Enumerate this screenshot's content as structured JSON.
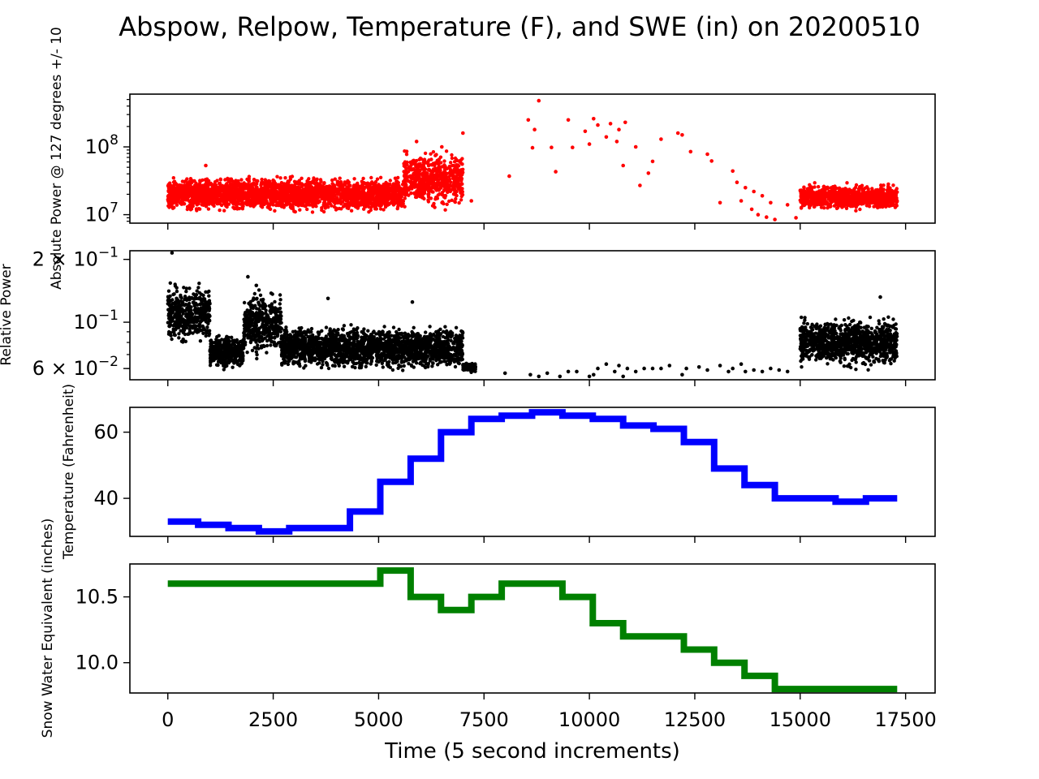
{
  "figure": {
    "title": "Abspow, Relpow, Temperature (F), and SWE (in) on 20200510",
    "xlabel": "Time (5 second increments)"
  },
  "chart_data": [
    {
      "type": "scatter",
      "ylabel": "Absolute Power @ 127 degrees +/- 10",
      "yscale": "log",
      "ylim": [
        7500000,
        600000000
      ],
      "yticks": [
        {
          "value": 100000000,
          "base": "10",
          "exp": "8"
        },
        {
          "value": 10000000,
          "base": "10",
          "exp": "7"
        }
      ],
      "color": "#ff0000",
      "xlim": [
        -900,
        18200
      ],
      "x_ticks": [
        0,
        2500,
        5000,
        7500,
        10000,
        12500,
        15000,
        17500
      ],
      "bands": [
        {
          "x": [
            0,
            5600
          ],
          "y": [
            10000000,
            40000000
          ]
        },
        {
          "x": [
            5600,
            7000
          ],
          "y": [
            11000000,
            100000000
          ]
        },
        {
          "x": [
            15000,
            17300
          ],
          "y": [
            11000000,
            30000000
          ]
        }
      ],
      "points": [
        [
          900,
          53000000
        ],
        [
          7000,
          160000000
        ],
        [
          5900,
          120000000
        ],
        [
          6500,
          100000000
        ],
        [
          7200,
          16000000
        ],
        [
          8100,
          37000000
        ],
        [
          8550,
          250000000
        ],
        [
          8650,
          97000000
        ],
        [
          8700,
          180000000
        ],
        [
          8800,
          480000000
        ],
        [
          9100,
          98000000
        ],
        [
          9200,
          43000000
        ],
        [
          9500,
          250000000
        ],
        [
          9600,
          98000000
        ],
        [
          9900,
          170000000
        ],
        [
          10000,
          110000000
        ],
        [
          10100,
          260000000
        ],
        [
          10200,
          210000000
        ],
        [
          10400,
          140000000
        ],
        [
          10500,
          220000000
        ],
        [
          10650,
          120000000
        ],
        [
          10700,
          180000000
        ],
        [
          10800,
          53000000
        ],
        [
          10850,
          230000000
        ],
        [
          11100,
          100000000
        ],
        [
          11200,
          27000000
        ],
        [
          11400,
          41000000
        ],
        [
          11500,
          61000000
        ],
        [
          11700,
          130000000
        ],
        [
          12100,
          160000000
        ],
        [
          12200,
          150000000
        ],
        [
          12400,
          85000000
        ],
        [
          12800,
          78000000
        ],
        [
          12900,
          62000000
        ],
        [
          13100,
          15000000
        ],
        [
          13400,
          44000000
        ],
        [
          13500,
          30000000
        ],
        [
          13600,
          16000000
        ],
        [
          13700,
          25000000
        ],
        [
          13850,
          12000000
        ],
        [
          13900,
          22000000
        ],
        [
          14000,
          10000000
        ],
        [
          14100,
          19000000
        ],
        [
          14200,
          9200000
        ],
        [
          14300,
          15000000
        ],
        [
          14400,
          8500000
        ],
        [
          14700,
          14000000
        ],
        [
          14900,
          9000000
        ]
      ]
    },
    {
      "type": "scatter",
      "ylabel": "Relative Power",
      "yscale": "log",
      "ylim": [
        0.053,
        0.22
      ],
      "yticks": [
        {
          "value": 0.2,
          "base": "2 × 10",
          "exp": "−1"
        },
        {
          "value": 0.1,
          "base": "10",
          "exp": "−1"
        },
        {
          "value": 0.06,
          "base": "6 × 10",
          "exp": "−2"
        }
      ],
      "color": "#000000",
      "xlim": [
        -900,
        18200
      ],
      "bands": [
        {
          "x": [
            0,
            1000
          ],
          "y": [
            0.075,
            0.16
          ]
        },
        {
          "x": [
            1000,
            1800
          ],
          "y": [
            0.058,
            0.09
          ]
        },
        {
          "x": [
            1800,
            2700
          ],
          "y": [
            0.065,
            0.15
          ]
        },
        {
          "x": [
            2700,
            7000
          ],
          "y": [
            0.057,
            0.1
          ]
        },
        {
          "x": [
            7000,
            7300
          ],
          "y": [
            0.057,
            0.065
          ]
        },
        {
          "x": [
            15000,
            17300
          ],
          "y": [
            0.058,
            0.11
          ]
        }
      ],
      "points": [
        [
          100,
          0.215
        ],
        [
          1900,
          0.165
        ],
        [
          2100,
          0.15
        ],
        [
          3800,
          0.13
        ],
        [
          5800,
          0.125
        ],
        [
          6900,
          0.082
        ],
        [
          8000,
          0.057
        ],
        [
          8600,
          0.056
        ],
        [
          8800,
          0.055
        ],
        [
          9000,
          0.057
        ],
        [
          9300,
          0.055
        ],
        [
          9500,
          0.058
        ],
        [
          9700,
          0.058
        ],
        [
          10000,
          0.055
        ],
        [
          10100,
          0.056
        ],
        [
          10200,
          0.06
        ],
        [
          10400,
          0.063
        ],
        [
          10600,
          0.058
        ],
        [
          10700,
          0.062
        ],
        [
          10800,
          0.055
        ],
        [
          10900,
          0.06
        ],
        [
          11100,
          0.058
        ],
        [
          11300,
          0.06
        ],
        [
          11500,
          0.06
        ],
        [
          11700,
          0.06
        ],
        [
          11900,
          0.062
        ],
        [
          12200,
          0.056
        ],
        [
          12300,
          0.06
        ],
        [
          12600,
          0.061
        ],
        [
          12800,
          0.059
        ],
        [
          13100,
          0.062
        ],
        [
          13300,
          0.058
        ],
        [
          13400,
          0.06
        ],
        [
          13600,
          0.063
        ],
        [
          13700,
          0.058
        ],
        [
          13900,
          0.059
        ],
        [
          14100,
          0.058
        ],
        [
          14300,
          0.06
        ],
        [
          14500,
          0.059
        ],
        [
          14700,
          0.058
        ],
        [
          16900,
          0.132
        ]
      ]
    },
    {
      "type": "line",
      "step": "post",
      "ylabel": "Temperature (Fahrenheit)",
      "yscale": "linear",
      "ylim": [
        28.5,
        67.5
      ],
      "yticks": [
        {
          "value": 40,
          "label": "40"
        },
        {
          "value": 60,
          "label": "60"
        }
      ],
      "color": "#0000ff",
      "xlim": [
        -900,
        18200
      ],
      "x": [
        0,
        720,
        1440,
        2160,
        2880,
        3600,
        4320,
        5040,
        5760,
        6480,
        7200,
        7920,
        8640,
        9360,
        10080,
        10800,
        11520,
        12240,
        12960,
        13680,
        14400,
        15120,
        15840,
        16560,
        17300
      ],
      "y": [
        33,
        32,
        31,
        30,
        31,
        31,
        36,
        45,
        52,
        60,
        64,
        65,
        66,
        65,
        64,
        62,
        61,
        57,
        49,
        44,
        40,
        40,
        39,
        40,
        40
      ]
    },
    {
      "type": "line",
      "step": "post",
      "ylabel": "Snow Water Equivalent (inches)",
      "yscale": "linear",
      "ylim": [
        9.77,
        10.75
      ],
      "yticks": [
        {
          "value": 10.0,
          "label": "10.0"
        },
        {
          "value": 10.5,
          "label": "10.5"
        }
      ],
      "color": "#008000",
      "xlim": [
        -900,
        18200
      ],
      "x": [
        0,
        720,
        1440,
        2160,
        2880,
        3600,
        4320,
        5040,
        5760,
        6480,
        7200,
        7920,
        8640,
        9360,
        10080,
        10800,
        11520,
        12240,
        12960,
        13680,
        14400,
        15120,
        15840,
        16560,
        17300
      ],
      "y": [
        10.6,
        10.6,
        10.6,
        10.6,
        10.6,
        10.6,
        10.6,
        10.7,
        10.5,
        10.4,
        10.5,
        10.6,
        10.6,
        10.5,
        10.3,
        10.2,
        10.2,
        10.1,
        10.0,
        9.9,
        9.8,
        9.8,
        9.8,
        9.8,
        9.8
      ]
    }
  ]
}
